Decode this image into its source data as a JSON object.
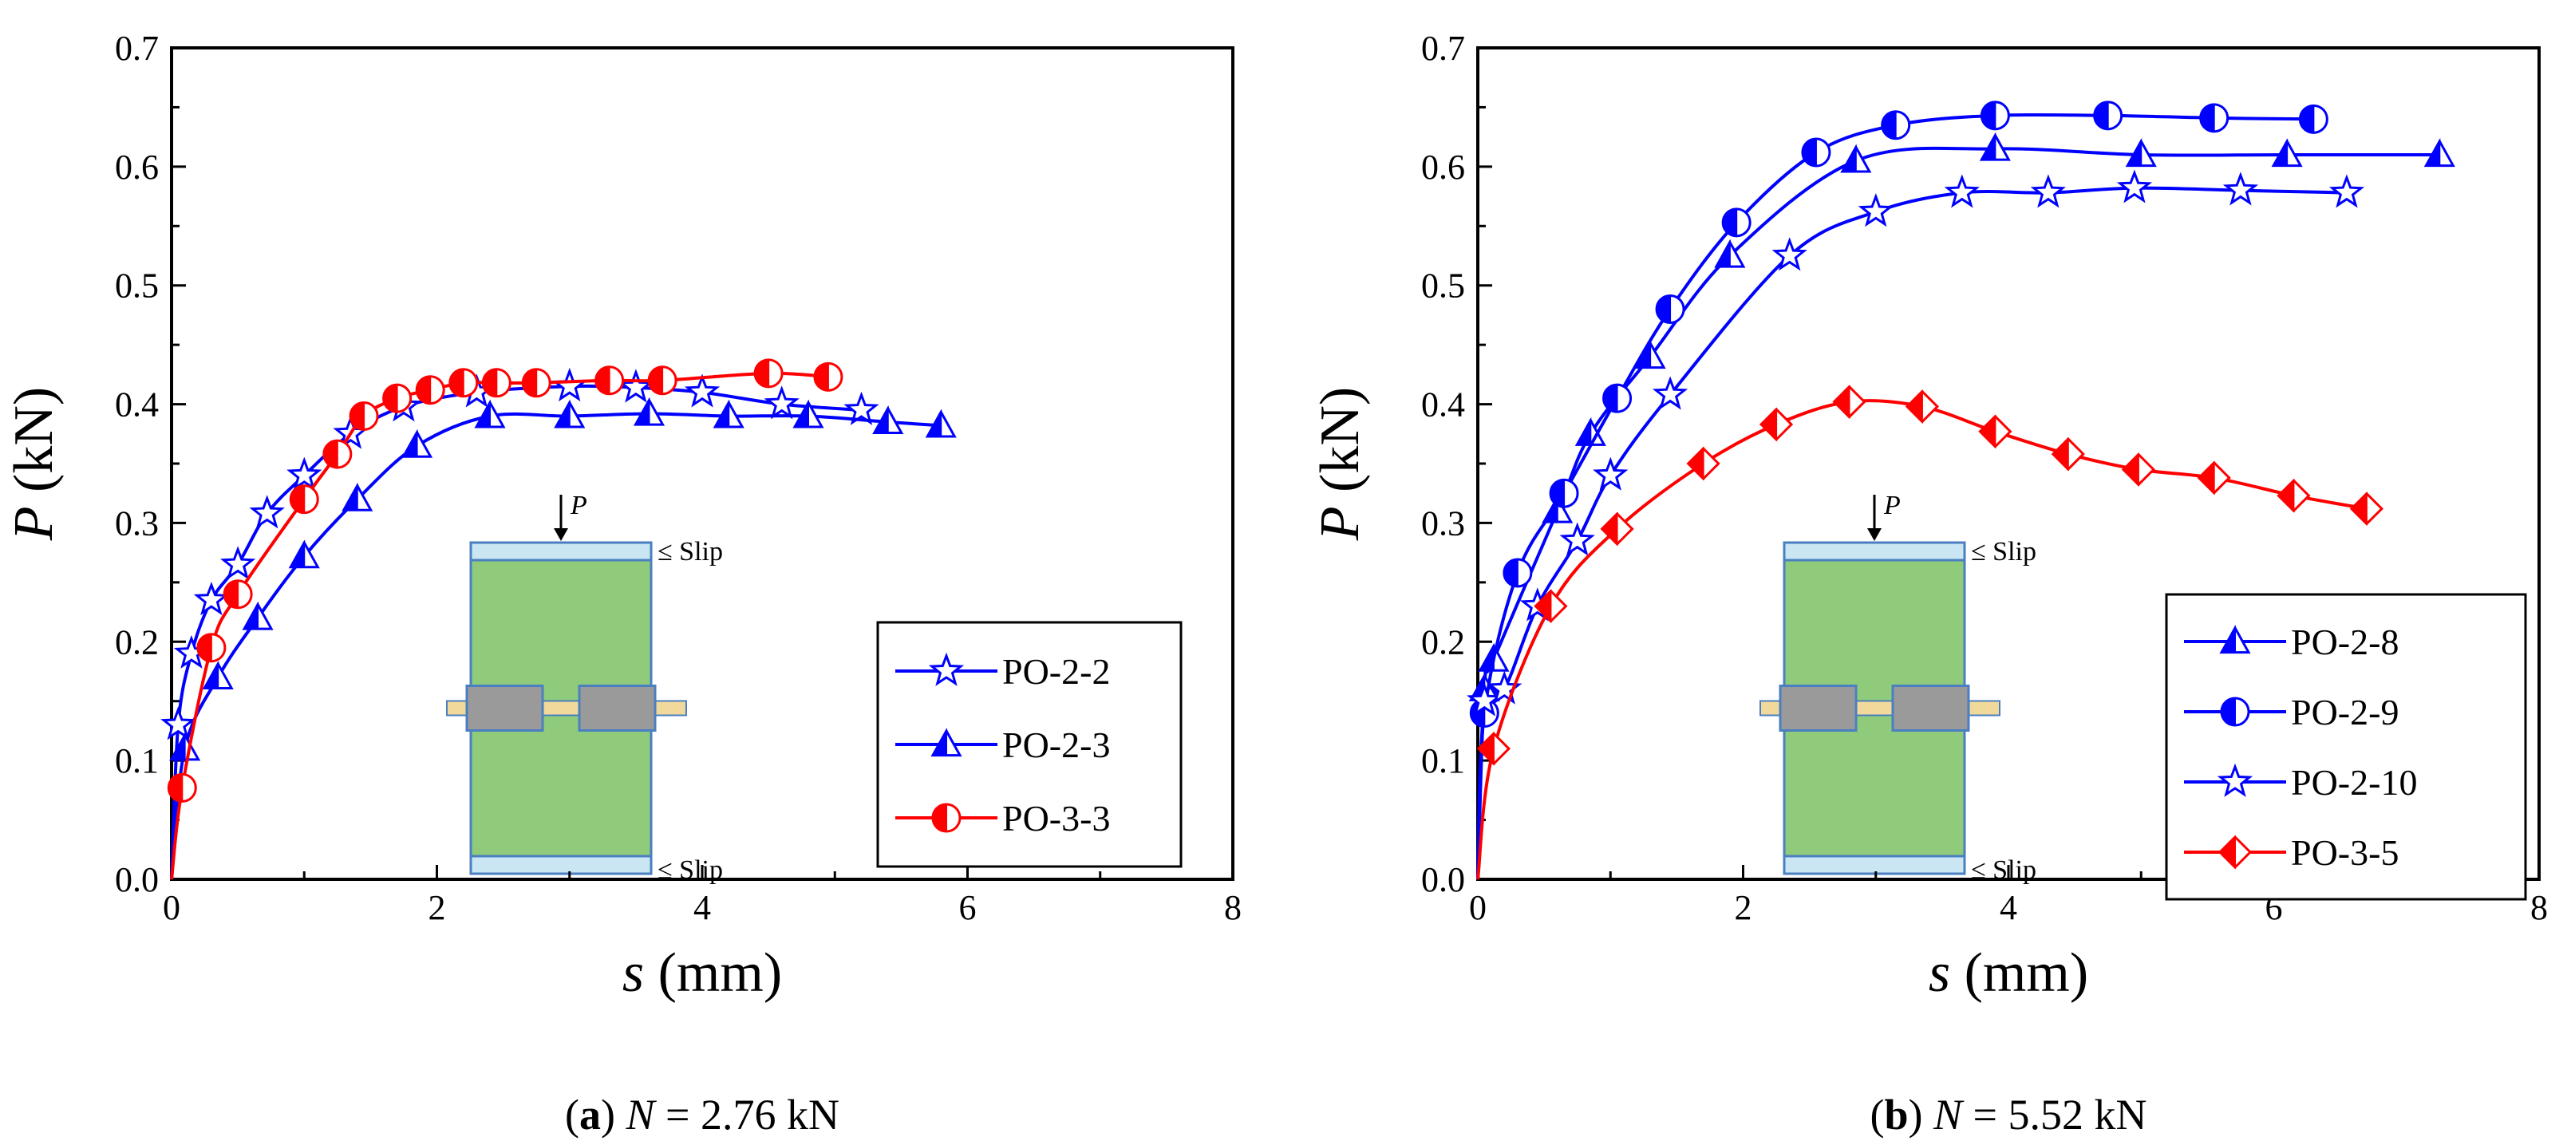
{
  "chart_data": [
    {
      "type": "line",
      "panel_label": "a",
      "caption_param": "N",
      "caption_value": " = 2.76 kN",
      "xlabel_symbol": "s",
      "xlabel_unit": " (mm)",
      "ylabel_symbol": "P",
      "ylabel_unit": " (kN)",
      "xlim": [
        0,
        8
      ],
      "ylim": [
        0,
        0.7
      ],
      "x_ticks": [
        "0",
        "2",
        "4",
        "6",
        "8"
      ],
      "y_ticks": [
        "0.0",
        "0.1",
        "0.2",
        "0.3",
        "0.4",
        "0.5",
        "0.6",
        "0.7"
      ],
      "legend_position": "bottom-right",
      "inset": {
        "load": "P",
        "slip_top": "Slip",
        "slip_bottom": "Slip"
      },
      "series": [
        {
          "name": "PO-2-2",
          "color": "#0000ff",
          "marker": "star",
          "points": [
            [
              0,
              0
            ],
            [
              0.05,
              0.13
            ],
            [
              0.15,
              0.19
            ],
            [
              0.3,
              0.235
            ],
            [
              0.5,
              0.265
            ],
            [
              0.72,
              0.308
            ],
            [
              1.0,
              0.34
            ],
            [
              1.35,
              0.375
            ],
            [
              1.75,
              0.398
            ],
            [
              2.3,
              0.41
            ],
            [
              3.0,
              0.415
            ],
            [
              3.5,
              0.414
            ],
            [
              4.0,
              0.41
            ],
            [
              4.6,
              0.4
            ],
            [
              5.2,
              0.395
            ]
          ]
        },
        {
          "name": "PO-2-3",
          "color": "#0000ff",
          "marker": "triangle",
          "points": [
            [
              0,
              0
            ],
            [
              0.1,
              0.11
            ],
            [
              0.35,
              0.17
            ],
            [
              0.65,
              0.22
            ],
            [
              1.0,
              0.272
            ],
            [
              1.4,
              0.32
            ],
            [
              1.85,
              0.365
            ],
            [
              2.4,
              0.39
            ],
            [
              3.0,
              0.39
            ],
            [
              3.6,
              0.392
            ],
            [
              4.2,
              0.39
            ],
            [
              4.8,
              0.39
            ],
            [
              5.4,
              0.385
            ],
            [
              5.8,
              0.382
            ]
          ]
        },
        {
          "name": "PO-3-3",
          "color": "#ff0000",
          "marker": "halfcircle",
          "points": [
            [
              0,
              0
            ],
            [
              0.08,
              0.077
            ],
            [
              0.3,
              0.195
            ],
            [
              0.5,
              0.24
            ],
            [
              1.0,
              0.32
            ],
            [
              1.25,
              0.358
            ],
            [
              1.45,
              0.39
            ],
            [
              1.7,
              0.405
            ],
            [
              1.95,
              0.412
            ],
            [
              2.2,
              0.418
            ],
            [
              2.45,
              0.418
            ],
            [
              2.75,
              0.418
            ],
            [
              3.3,
              0.42
            ],
            [
              3.7,
              0.42
            ],
            [
              4.5,
              0.426
            ],
            [
              4.95,
              0.423
            ]
          ]
        }
      ]
    },
    {
      "type": "line",
      "panel_label": "b",
      "caption_param": "N",
      "caption_value": " = 5.52 kN",
      "xlabel_symbol": "s",
      "xlabel_unit": " (mm)",
      "ylabel_symbol": "P",
      "ylabel_unit": " (kN)",
      "xlim": [
        0,
        8
      ],
      "ylim": [
        0,
        0.7
      ],
      "x_ticks": [
        "0",
        "2",
        "4",
        "6",
        "8"
      ],
      "y_ticks": [
        "0.0",
        "0.1",
        "0.2",
        "0.3",
        "0.4",
        "0.5",
        "0.6",
        "0.7"
      ],
      "legend_position": "bottom-right",
      "inset": {
        "load": "P",
        "slip_top": "Slip",
        "slip_bottom": "Slip"
      },
      "series": [
        {
          "name": "PO-2-8",
          "color": "#0000ff",
          "marker": "triangle",
          "points": [
            [
              0,
              0
            ],
            [
              0.05,
              0.16
            ],
            [
              0.12,
              0.185
            ],
            [
              0.6,
              0.31
            ],
            [
              0.85,
              0.375
            ],
            [
              1.3,
              0.44
            ],
            [
              1.9,
              0.525
            ],
            [
              2.85,
              0.605
            ],
            [
              3.9,
              0.615
            ],
            [
              5.0,
              0.61
            ],
            [
              6.1,
              0.61
            ],
            [
              7.25,
              0.61
            ]
          ]
        },
        {
          "name": "PO-2-9",
          "color": "#0000ff",
          "marker": "halfcircle",
          "points": [
            [
              0,
              0
            ],
            [
              0.05,
              0.14
            ],
            [
              0.3,
              0.258
            ],
            [
              0.65,
              0.325
            ],
            [
              1.05,
              0.405
            ],
            [
              1.45,
              0.48
            ],
            [
              1.95,
              0.553
            ],
            [
              2.55,
              0.612
            ],
            [
              3.15,
              0.635
            ],
            [
              3.9,
              0.643
            ],
            [
              4.75,
              0.643
            ],
            [
              5.55,
              0.641
            ],
            [
              6.3,
              0.64
            ]
          ]
        },
        {
          "name": "PO-2-10",
          "color": "#0000ff",
          "marker": "star",
          "points": [
            [
              0,
              0
            ],
            [
              0.05,
              0.15
            ],
            [
              0.2,
              0.16
            ],
            [
              0.45,
              0.23
            ],
            [
              0.75,
              0.285
            ],
            [
              1.0,
              0.34
            ],
            [
              1.45,
              0.408
            ],
            [
              2.35,
              0.525
            ],
            [
              3.0,
              0.562
            ],
            [
              3.65,
              0.578
            ],
            [
              4.3,
              0.578
            ],
            [
              4.95,
              0.582
            ],
            [
              5.75,
              0.58
            ],
            [
              6.55,
              0.578
            ]
          ]
        },
        {
          "name": "PO-3-5",
          "color": "#ff0000",
          "marker": "diamond",
          "points": [
            [
              0,
              0
            ],
            [
              0.12,
              0.11
            ],
            [
              0.55,
              0.23
            ],
            [
              1.05,
              0.295
            ],
            [
              1.7,
              0.35
            ],
            [
              2.25,
              0.383
            ],
            [
              2.8,
              0.402
            ],
            [
              3.35,
              0.398
            ],
            [
              3.9,
              0.377
            ],
            [
              4.45,
              0.358
            ],
            [
              4.98,
              0.345
            ],
            [
              5.55,
              0.338
            ],
            [
              6.15,
              0.323
            ],
            [
              6.7,
              0.312
            ]
          ]
        }
      ]
    }
  ]
}
